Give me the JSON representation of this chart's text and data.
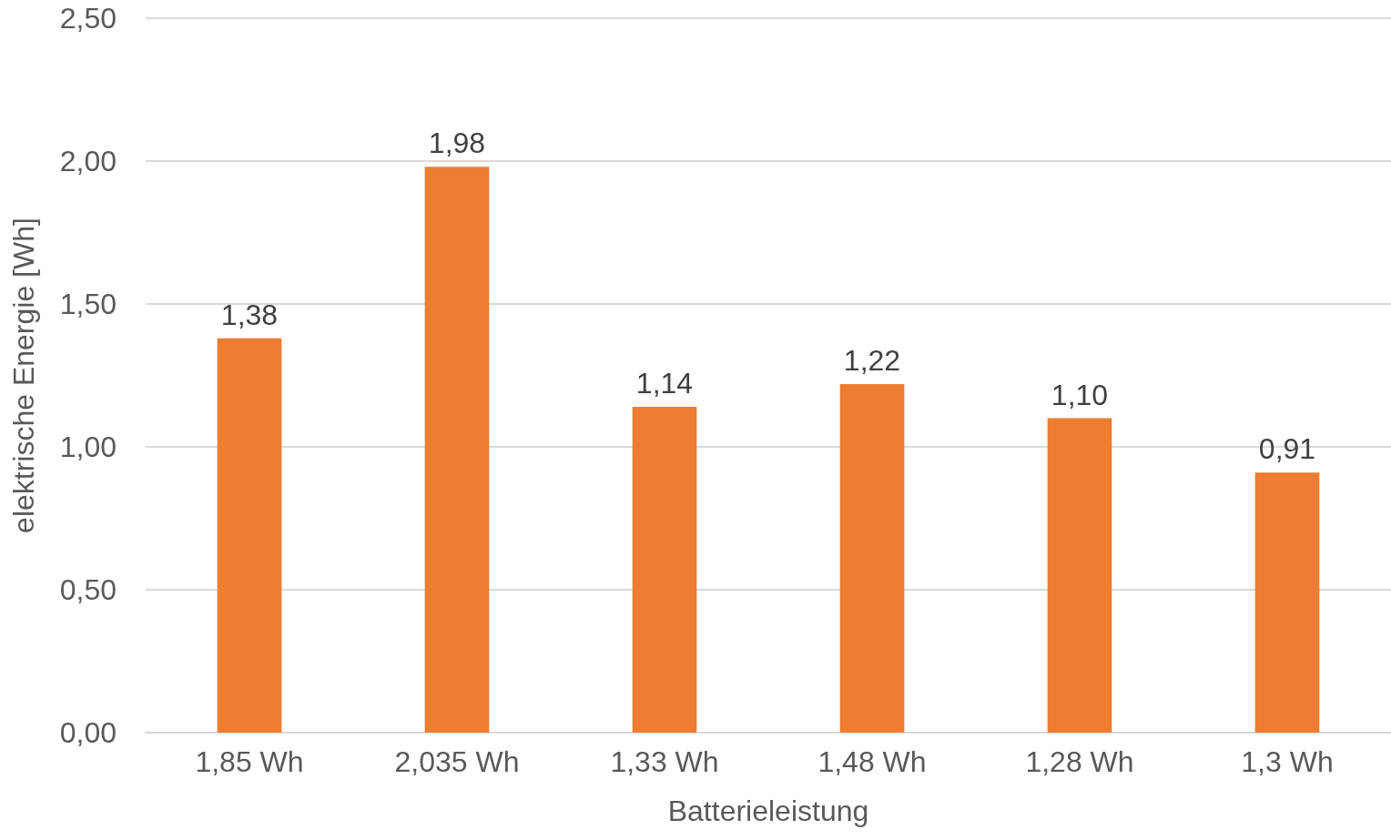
{
  "chart_data": {
    "type": "bar",
    "xlabel": "Batterieleistung",
    "ylabel": "elektrische Energie [Wh]",
    "categories": [
      "1,85 Wh",
      "2,035 Wh",
      "1,33 Wh",
      "1,48 Wh",
      "1,28 Wh",
      "1,3 Wh"
    ],
    "values": [
      1.38,
      1.98,
      1.14,
      1.22,
      1.1,
      0.91
    ],
    "value_labels": [
      "1,38",
      "1,98",
      "1,14",
      "1,22",
      "1,10",
      "0,91"
    ],
    "color": "#ed7d31",
    "ylim": [
      0,
      2.5
    ],
    "yticks": [
      {
        "value": 0,
        "label": "0,00"
      },
      {
        "value": 0.5,
        "label": "0,50"
      },
      {
        "value": 1,
        "label": "1,00"
      },
      {
        "value": 1.5,
        "label": "1,50"
      },
      {
        "value": 2,
        "label": "2,00"
      },
      {
        "value": 2.5,
        "label": "2,50"
      }
    ],
    "grid": "y"
  }
}
